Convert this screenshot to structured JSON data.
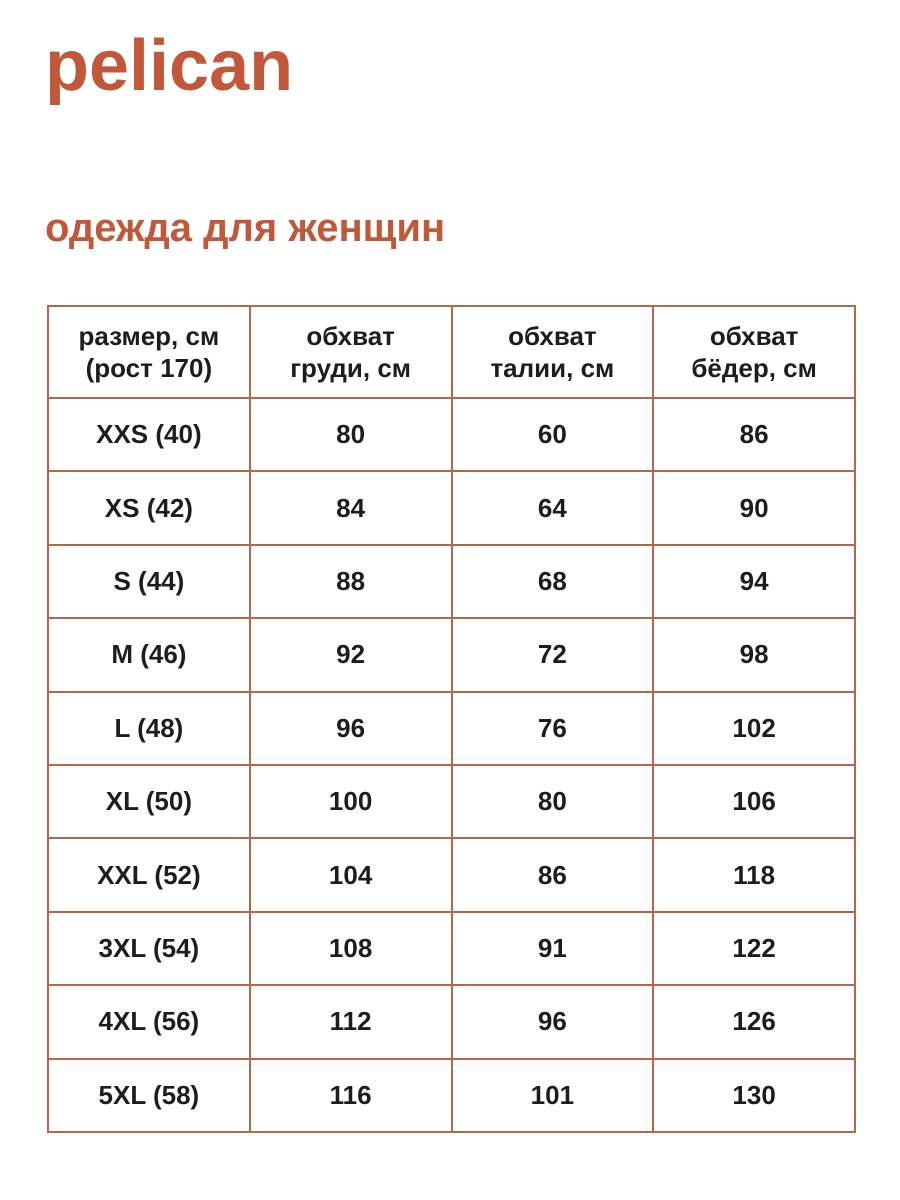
{
  "brand": {
    "logo_text": "pelican"
  },
  "page": {
    "heading": "одежда для женщин"
  },
  "colors": {
    "brand_orange": "#c2583a",
    "table_border": "#b5674a",
    "text": "#1d1d1d",
    "background": "#ffffff"
  },
  "table": {
    "headers": [
      {
        "line1": "размер, см",
        "line2": "(рост 170)"
      },
      {
        "line1": "обхват",
        "line2": "груди, см"
      },
      {
        "line1": "обхват",
        "line2": "талии, см"
      },
      {
        "line1": "обхват",
        "line2": "бёдер, см"
      }
    ],
    "rows": [
      {
        "size": "XXS (40)",
        "chest": "80",
        "waist": "60",
        "hips": "86"
      },
      {
        "size": "XS (42)",
        "chest": "84",
        "waist": "64",
        "hips": "90"
      },
      {
        "size": "S (44)",
        "chest": "88",
        "waist": "68",
        "hips": "94"
      },
      {
        "size": "M (46)",
        "chest": "92",
        "waist": "72",
        "hips": "98"
      },
      {
        "size": "L (48)",
        "chest": "96",
        "waist": "76",
        "hips": "102"
      },
      {
        "size": "XL (50)",
        "chest": "100",
        "waist": "80",
        "hips": "106"
      },
      {
        "size": "XXL (52)",
        "chest": "104",
        "waist": "86",
        "hips": "118"
      },
      {
        "size": "3XL (54)",
        "chest": "108",
        "waist": "91",
        "hips": "122"
      },
      {
        "size": "4XL (56)",
        "chest": "112",
        "waist": "96",
        "hips": "126"
      },
      {
        "size": "5XL (58)",
        "chest": "116",
        "waist": "101",
        "hips": "130"
      }
    ]
  }
}
